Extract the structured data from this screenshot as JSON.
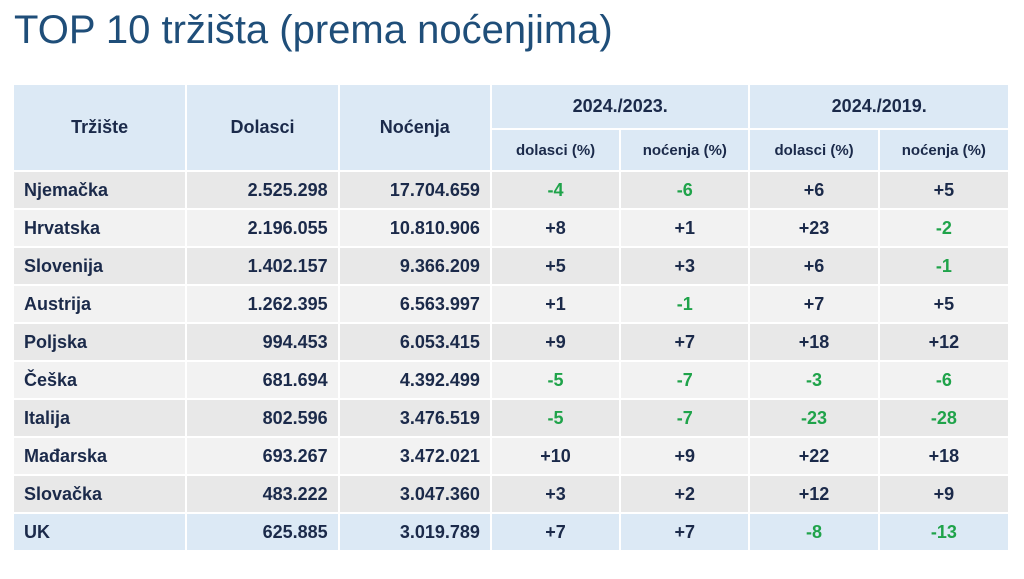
{
  "title": "TOP 10 tržišta (prema noćenjima)",
  "headers": {
    "market": "Tržište",
    "arrivals": "Dolasci",
    "nights": "Noćenja",
    "period1": "2024./2023.",
    "period2": "2024./2019.",
    "arr_pct": "dolasci (%)",
    "nights_pct": "noćenja (%)"
  },
  "rows": [
    {
      "market": "Njemačka",
      "arrivals": "2.525.298",
      "nights": "17.704.659",
      "a23": "-4",
      "n23": "-6",
      "a19": "+6",
      "n19": "+5"
    },
    {
      "market": "Hrvatska",
      "arrivals": "2.196.055",
      "nights": "10.810.906",
      "a23": "+8",
      "n23": "+1",
      "a19": "+23",
      "n19": "-2"
    },
    {
      "market": "Slovenija",
      "arrivals": "1.402.157",
      "nights": "9.366.209",
      "a23": "+5",
      "n23": "+3",
      "a19": "+6",
      "n19": "-1"
    },
    {
      "market": "Austrija",
      "arrivals": "1.262.395",
      "nights": "6.563.997",
      "a23": "+1",
      "n23": "-1",
      "a19": "+7",
      "n19": "+5"
    },
    {
      "market": "Poljska",
      "arrivals": "994.453",
      "nights": "6.053.415",
      "a23": "+9",
      "n23": "+7",
      "a19": "+18",
      "n19": "+12"
    },
    {
      "market": "Češka",
      "arrivals": "681.694",
      "nights": "4.392.499",
      "a23": "-5",
      "n23": "-7",
      "a19": "-3",
      "n19": "-6"
    },
    {
      "market": "Italija",
      "arrivals": "802.596",
      "nights": "3.476.519",
      "a23": "-5",
      "n23": "-7",
      "a19": "-23",
      "n19": "-28"
    },
    {
      "market": "Mađarska",
      "arrivals": "693.267",
      "nights": "3.472.021",
      "a23": "+10",
      "n23": "+9",
      "a19": "+22",
      "n19": "+18"
    },
    {
      "market": "Slovačka",
      "arrivals": "483.222",
      "nights": "3.047.360",
      "a23": "+3",
      "n23": "+2",
      "a19": "+12",
      "n19": "+9"
    },
    {
      "market": "UK",
      "arrivals": "625.885",
      "nights": "3.019.789",
      "a23": "+7",
      "n23": "+7",
      "a19": "-8",
      "n19": "-13"
    }
  ],
  "colors": {
    "title": "#1f4e79",
    "header_bg": "#dce9f5",
    "negative": "#1fa34a",
    "text": "#1b2a4a"
  }
}
